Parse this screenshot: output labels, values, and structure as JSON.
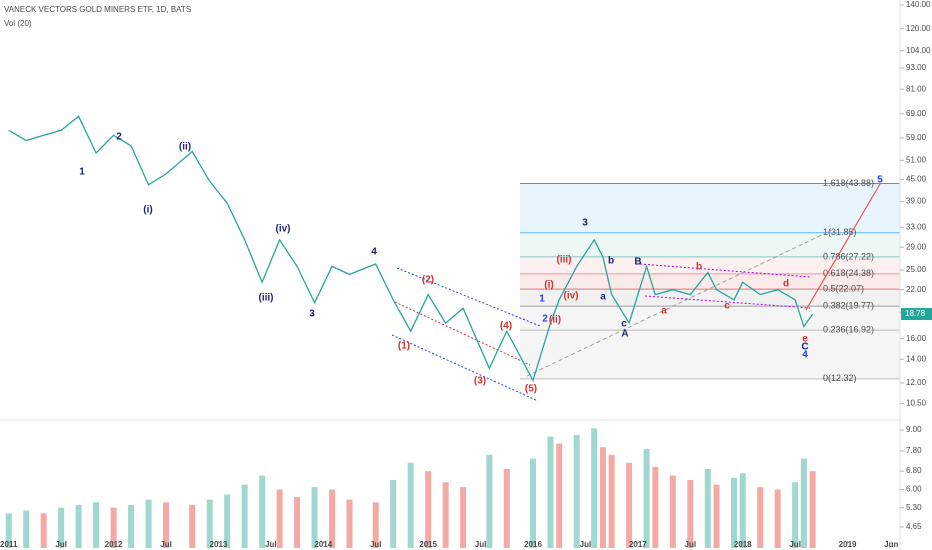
{
  "chart_data": [
    {
      "type": "line",
      "title": "VANECK VECTORS GOLD MINERS ETF, 1D, BATS",
      "log_scale": true,
      "color": "#26a69a",
      "x": [
        "2011-01",
        "2011-03",
        "2011-05",
        "2011-07",
        "2011-09",
        "2011-11",
        "2012-01",
        "2012-03",
        "2012-05",
        "2012-07",
        "2012-10",
        "2012-12",
        "2013-02",
        "2013-04",
        "2013-06",
        "2013-08",
        "2013-10",
        "2013-12",
        "2014-02",
        "2014-04",
        "2014-07",
        "2014-09",
        "2014-11",
        "2015-01",
        "2015-03",
        "2015-05",
        "2015-08",
        "2015-10",
        "2016-01",
        "2016-03",
        "2016-04",
        "2016-06",
        "2016-08",
        "2016-09",
        "2016-10",
        "2016-12",
        "2017-02",
        "2017-03",
        "2017-05",
        "2017-07",
        "2017-09",
        "2017-10",
        "2017-12",
        "2018-01",
        "2018-03",
        "2018-05",
        "2018-07",
        "2018-08",
        "2018-09"
      ],
      "values": [
        62,
        58,
        60,
        62,
        67.9,
        53.5,
        60,
        56,
        43.5,
        46.7,
        54,
        44.5,
        38.6,
        30.4,
        23.1,
        30.4,
        25.6,
        20.2,
        25.6,
        24.3,
        26,
        20.6,
        16.8,
        21.3,
        17.7,
        19.5,
        13.2,
        16.8,
        12.2,
        17.7,
        20.6,
        25.6,
        30.4,
        27.2,
        21.3,
        17.7,
        25.6,
        21.3,
        22,
        21.3,
        24.6,
        22,
        20.6,
        23.1,
        21.3,
        22,
        20.6,
        17.3,
        18.78
      ],
      "last_value_label": "18.78",
      "xlim": [
        "2010-12",
        "2019-07"
      ],
      "xticks": [
        {
          "value": "2011-01",
          "label": "2011"
        },
        {
          "value": "2011-07",
          "label": "Jul"
        },
        {
          "value": "2012-01",
          "label": "2012"
        },
        {
          "value": "2012-07",
          "label": "Jul"
        },
        {
          "value": "2013-01",
          "label": "2013"
        },
        {
          "value": "2013-07",
          "label": "Jul"
        },
        {
          "value": "2014-01",
          "label": "2014"
        },
        {
          "value": "2014-07",
          "label": "Jul"
        },
        {
          "value": "2015-01",
          "label": "2015"
        },
        {
          "value": "2015-07",
          "label": "Jul"
        },
        {
          "value": "2016-01",
          "label": "2016"
        },
        {
          "value": "2016-07",
          "label": "Jul"
        },
        {
          "value": "2017-01",
          "label": "2017"
        },
        {
          "value": "2017-07",
          "label": "Jul"
        },
        {
          "value": "2018-01",
          "label": "2018"
        },
        {
          "value": "2018-07",
          "label": "Jul"
        },
        {
          "value": "2019-01",
          "label": "2019"
        },
        {
          "value": "2019-06",
          "label": "Jun"
        }
      ],
      "ylim": [
        9.43,
        144.6
      ],
      "yticks": [
        {
          "value": 140,
          "label": "140.00"
        },
        {
          "value": 120,
          "label": "120.00"
        },
        {
          "value": 104,
          "label": "104.00"
        },
        {
          "value": 93,
          "label": "93.00"
        },
        {
          "value": 81,
          "label": "81.00"
        },
        {
          "value": 69,
          "label": "69.00"
        },
        {
          "value": 59,
          "label": "59.00"
        },
        {
          "value": 51,
          "label": "51.00"
        },
        {
          "value": 45,
          "label": "45.00"
        },
        {
          "value": 39,
          "label": "39.00"
        },
        {
          "value": 33,
          "label": "33.00"
        },
        {
          "value": 29,
          "label": "29.00"
        },
        {
          "value": 25,
          "label": "25.00"
        },
        {
          "value": 22,
          "label": "22.00"
        },
        {
          "value": 19,
          "label": "19.00"
        },
        {
          "value": 16,
          "label": "16.00"
        },
        {
          "value": 14,
          "label": "14.00"
        },
        {
          "value": 12,
          "label": "12.00"
        },
        {
          "value": 10.5,
          "label": "10.50"
        }
      ],
      "fib_levels": [
        {
          "label": "1.618(43.88)",
          "value": 43.88,
          "color": "#4caf50"
        },
        {
          "label": "1(31.85)",
          "value": 31.85,
          "color": "#64b5f6"
        },
        {
          "label": "0.786(27.22)",
          "value": 27.22,
          "color": "#80cbc4"
        },
        {
          "label": "0.618(24.38)",
          "value": 24.38,
          "color": "#ef9a9a"
        },
        {
          "label": "0.5(22.07)",
          "value": 22.07,
          "color": "#e57373"
        },
        {
          "label": "0.382(19.77)",
          "value": 19.77,
          "color": "#9e9e9e"
        },
        {
          "label": "0.236(16.92)",
          "value": 16.92,
          "color": "#bdbdbd"
        },
        {
          "label": "0(12.32)",
          "value": 12.32,
          "color": "#bdbdbd"
        }
      ],
      "annotations": [
        {
          "text": "1",
          "color": "#1a237e"
        },
        {
          "text": "2",
          "color": "#1a237e"
        },
        {
          "text": "(i)",
          "color": "#1a237e"
        },
        {
          "text": "(ii)",
          "color": "#1a237e"
        },
        {
          "text": "(iii)",
          "color": "#1a237e"
        },
        {
          "text": "(iv)",
          "color": "#1a237e"
        },
        {
          "text": "3",
          "color": "#1a237e"
        },
        {
          "text": "4",
          "color": "#1a237e"
        },
        {
          "text": "(1)",
          "color": "#d32f2f"
        },
        {
          "text": "(2)",
          "color": "#d32f2f"
        },
        {
          "text": "(3)",
          "color": "#d32f2f"
        },
        {
          "text": "(4)",
          "color": "#d32f2f"
        },
        {
          "text": "(5)",
          "color": "#d32f2f"
        },
        {
          "text": "1",
          "color": "#1e40ff"
        },
        {
          "text": "2",
          "color": "#1e40ff"
        },
        {
          "text": "(i)",
          "color": "#d32f2f"
        },
        {
          "text": "(ii)",
          "color": "#d32f2f"
        },
        {
          "text": "(iii)",
          "color": "#d32f2f"
        },
        {
          "text": "(iv)",
          "color": "#d32f2f"
        },
        {
          "text": "3",
          "color": "#1a237e"
        },
        {
          "text": "b",
          "color": "#1a237e"
        },
        {
          "text": "a",
          "color": "#1a237e"
        },
        {
          "text": "c",
          "color": "#1a237e"
        },
        {
          "text": "A",
          "color": "#1a237e"
        },
        {
          "text": "B",
          "color": "#1a237e"
        },
        {
          "text": "a",
          "color": "#d32f2f"
        },
        {
          "text": "b",
          "color": "#d32f2f"
        },
        {
          "text": "c",
          "color": "#d32f2f"
        },
        {
          "text": "d",
          "color": "#d32f2f"
        },
        {
          "text": "e",
          "color": "#d32f2f"
        },
        {
          "text": "C",
          "color": "#1a237e"
        },
        {
          "text": "4",
          "color": "#1e40ff"
        },
        {
          "text": "5",
          "color": "#1e40ff"
        }
      ]
    },
    {
      "type": "bar",
      "title": "Vol (20)",
      "log_scale": true,
      "up_color": "#9fd8cf",
      "down_color": "#f4a9a5",
      "x": [
        "2011-01",
        "2011-03",
        "2011-05",
        "2011-07",
        "2011-09",
        "2011-11",
        "2012-01",
        "2012-03",
        "2012-05",
        "2012-07",
        "2012-10",
        "2012-12",
        "2013-02",
        "2013-04",
        "2013-06",
        "2013-08",
        "2013-10",
        "2013-12",
        "2014-02",
        "2014-04",
        "2014-07",
        "2014-09",
        "2014-11",
        "2015-01",
        "2015-03",
        "2015-05",
        "2015-08",
        "2015-10",
        "2016-01",
        "2016-03",
        "2016-04",
        "2016-06",
        "2016-08",
        "2016-09",
        "2016-10",
        "2016-12",
        "2017-02",
        "2017-03",
        "2017-05",
        "2017-07",
        "2017-09",
        "2017-10",
        "2017-12",
        "2018-01",
        "2018-03",
        "2018-05",
        "2018-07",
        "2018-08",
        "2018-09"
      ],
      "values": [
        5.1,
        5.2,
        5.1,
        5.3,
        5.4,
        5.5,
        5.3,
        5.4,
        5.6,
        5.5,
        5.4,
        5.6,
        5.8,
        6.2,
        6.6,
        6.0,
        5.7,
        6.1,
        6.0,
        5.6,
        5.5,
        6.4,
        7.2,
        6.8,
        6.3,
        6.1,
        7.6,
        6.9,
        7.4,
        8.6,
        8.2,
        8.7,
        9.1,
        8.0,
        7.6,
        7.2,
        7.9,
        7.0,
        6.6,
        6.4,
        6.9,
        6.2,
        6.5,
        6.7,
        6.1,
        6.0,
        6.3,
        7.4,
        6.8
      ],
      "ylim": [
        4.03,
        9.63
      ],
      "yticks": [
        {
          "value": 9,
          "label": "9.00"
        },
        {
          "value": 7.8,
          "label": "7.80"
        },
        {
          "value": 6.8,
          "label": "6.80"
        },
        {
          "value": 6,
          "label": "6.00"
        },
        {
          "value": 5.3,
          "label": "5.30"
        },
        {
          "value": 4.65,
          "label": "4.65"
        }
      ]
    }
  ]
}
